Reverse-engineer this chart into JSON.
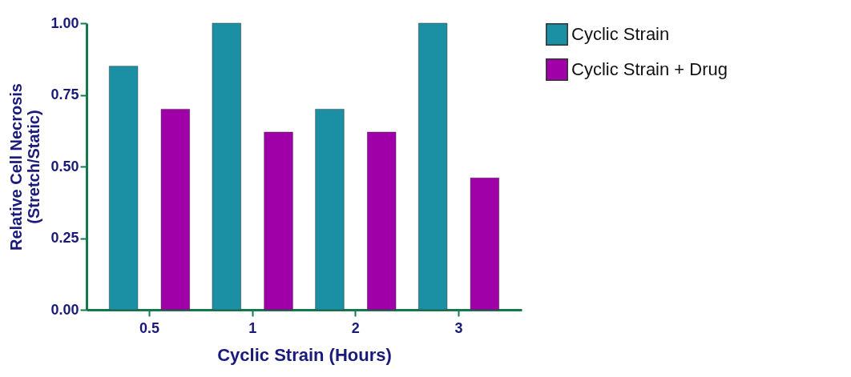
{
  "chart_data": {
    "type": "bar",
    "xlabel": "Cyclic Strain (Hours)",
    "ylabel": "Relative Cell Necrosis (Stretch/Static)",
    "categories": [
      "0.5",
      "1",
      "2",
      "3"
    ],
    "series": [
      {
        "name": "Cyclic Strain",
        "color": "#1b8fa3",
        "values": [
          0.85,
          1.0,
          0.7,
          1.0
        ]
      },
      {
        "name": "Cyclic Strain + Drug",
        "color": "#a000a8",
        "values": [
          0.7,
          0.62,
          0.62,
          0.46
        ]
      }
    ],
    "ylim": [
      0,
      1
    ],
    "yticks": [
      {
        "value": 0,
        "label": "0.00"
      },
      {
        "value": 0.25,
        "label": "0.25"
      },
      {
        "value": 0.5,
        "label": "0.50"
      },
      {
        "value": 0.75,
        "label": "0.75"
      },
      {
        "value": 1,
        "label": "1.00"
      }
    ],
    "grid": false,
    "legend": "top right"
  }
}
